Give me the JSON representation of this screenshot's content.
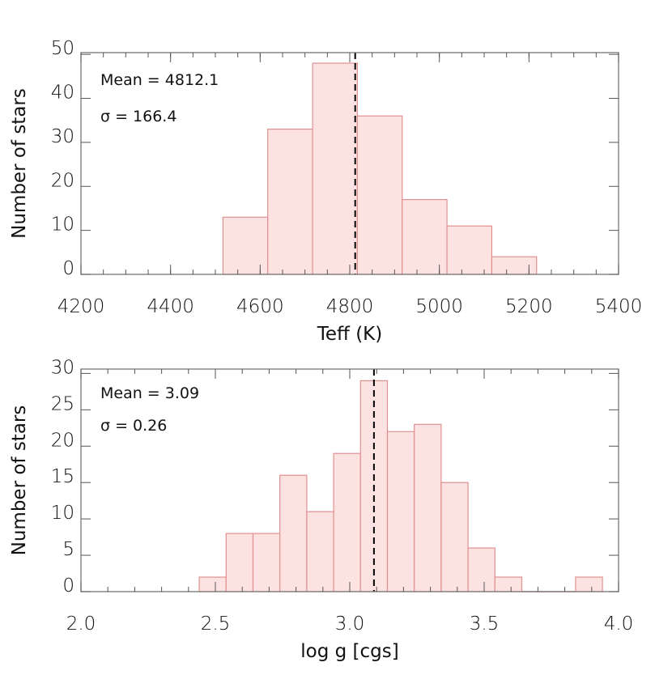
{
  "chart_data": [
    {
      "type": "bar",
      "subtype": "histogram",
      "xlabel": "Teff (K)",
      "ylabel": "Number of stars",
      "xlim": [
        4200,
        5400
      ],
      "ylim": [
        0,
        50.4
      ],
      "xticks": [
        4200,
        4400,
        4600,
        4800,
        5000,
        5200,
        5400
      ],
      "xtick_labels": [
        "4200",
        "4400",
        "4600",
        "4800",
        "5000",
        "5200",
        "5400"
      ],
      "xminor": 50,
      "yticks": [
        0,
        10,
        20,
        30,
        40,
        50
      ],
      "ytick_labels": [
        "0",
        "10",
        "20",
        "30",
        "40",
        "50"
      ],
      "bin_edges": [
        4517,
        4617,
        4717,
        4817,
        4917,
        5017,
        5117,
        5217
      ],
      "values": [
        13,
        33,
        48,
        36,
        17,
        11,
        4
      ],
      "mean_line": 4812.1,
      "annotations": [
        "Mean = 4812.1",
        "σ = 166.4"
      ],
      "bar_fill": "#fde2e2",
      "bar_stroke": "#e09090",
      "grid": false
    },
    {
      "type": "bar",
      "subtype": "histogram",
      "xlabel": "log g [cgs]",
      "ylabel": "Number of stars",
      "xlim": [
        2.0,
        4.0
      ],
      "ylim": [
        0,
        30.6
      ],
      "xticks": [
        2.0,
        2.5,
        3.0,
        3.5,
        4.0
      ],
      "xtick_labels": [
        "2.0",
        "2.5",
        "3.0",
        "3.5",
        "4.0"
      ],
      "xminor": 0.1,
      "yticks": [
        0,
        5,
        10,
        15,
        20,
        25,
        30
      ],
      "ytick_labels": [
        "0",
        "5",
        "10",
        "15",
        "20",
        "25",
        "30"
      ],
      "bin_edges": [
        2.44,
        2.54,
        2.64,
        2.74,
        2.84,
        2.94,
        3.04,
        3.14,
        3.24,
        3.34,
        3.44,
        3.54,
        3.64,
        3.74,
        3.84,
        3.94
      ],
      "values": [
        2,
        8,
        8,
        16,
        11,
        19,
        29,
        22,
        23,
        15,
        6,
        2,
        0,
        0,
        2
      ],
      "mean_line": 3.09,
      "annotations": [
        "Mean = 3.09",
        "σ = 0.26"
      ],
      "bar_fill": "#fde2e2",
      "bar_stroke": "#e09090",
      "grid": false
    }
  ]
}
